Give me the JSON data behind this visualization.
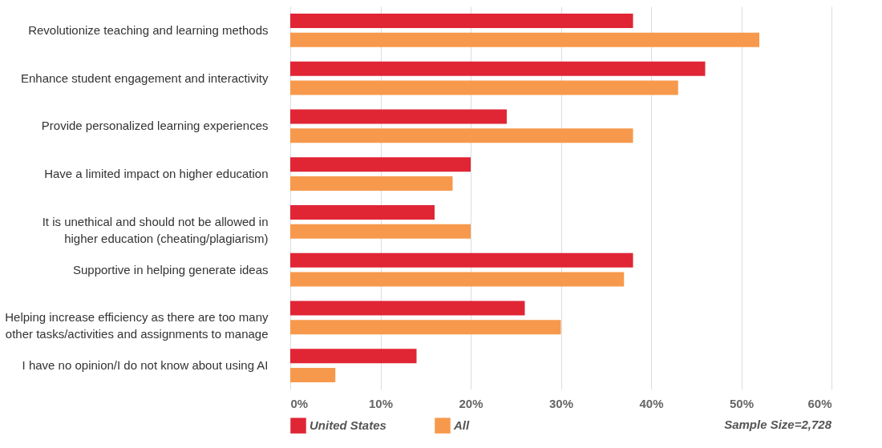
{
  "chart_data": {
    "type": "bar",
    "orientation": "horizontal",
    "categories": [
      "Revolutionize teaching and learning methods",
      "Enhance student engagement and interactivity",
      "Provide personalized learning experiences",
      "Have a limited impact on higher education",
      "It is unethical and should not be allowed in higher education (cheating/plagiarism)",
      "Supportive in helping generate ideas",
      "Helping increase efficiency as there are too many other tasks/activities and assignments to manage",
      "I have no opinion/I do not know about using AI"
    ],
    "series": [
      {
        "name": "United States",
        "color": "#e02535",
        "values": [
          38,
          46,
          24,
          20,
          16,
          38,
          26,
          14
        ]
      },
      {
        "name": "All",
        "color": "#f7994c",
        "values": [
          52,
          43,
          38,
          18,
          20,
          37,
          30,
          5
        ]
      }
    ],
    "xlim": [
      0,
      60
    ],
    "xticks": [
      {
        "value": 0,
        "label": "0%"
      },
      {
        "value": 10,
        "label": "10%"
      },
      {
        "value": 20,
        "label": "20%"
      },
      {
        "value": 30,
        "label": "30%"
      },
      {
        "value": 40,
        "label": "40%"
      },
      {
        "value": 50,
        "label": "50%"
      },
      {
        "value": 60,
        "label": "60%"
      }
    ],
    "grid": "x",
    "legend": "bottom",
    "annotations": [
      "Sample Size=2,728"
    ]
  }
}
